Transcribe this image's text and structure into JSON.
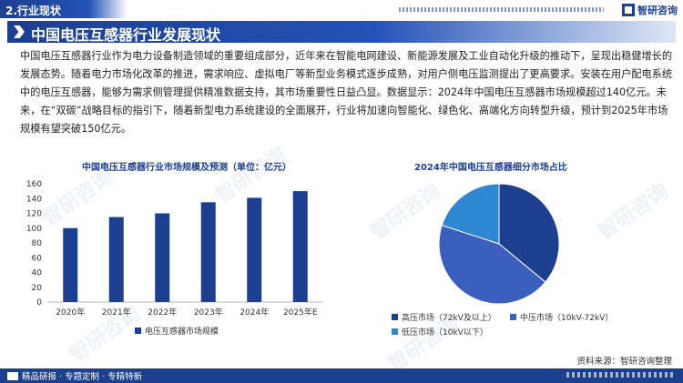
{
  "header": {
    "section": "2.行业现状",
    "brand": "智研咨询"
  },
  "title": "中国电压互感器行业发展现状",
  "body": "中国电压互感器行业作为电力设备制造领域的重要组成部分，近年来在智能电网建设、新能源发展及工业自动化升级的推动下，呈现出稳健增长的发展态势。随着电力市场化改革的推进，需求响应、虚拟电厂等新型业务模式逐步成熟，对用户侧电压监测提出了更高要求。安装在用户配电系统中的电压互感器，能够为需求侧管理提供精准数据支持，其市场重要性日益凸显。数据显示：2024年中国电压互感器市场规模超过140亿元。未来，在“双碳”战略目标的指引下，随着新型电力系统建设的全面展开，行业将加速向智能化、绿色化、高端化方向转型升级，预计到2025年市场规模有望突破150亿元。",
  "watermark": "智研咨询",
  "chart_data": [
    {
      "type": "bar",
      "title": "中国电压互感器行业市场规模及预测（单位：亿元）",
      "categories": [
        "2020年",
        "2021年",
        "2022年",
        "2023年",
        "2024年",
        "2025年E"
      ],
      "series": [
        {
          "name": "电压互感器市场规模",
          "values": [
            100,
            115,
            120,
            135,
            141,
            150
          ]
        }
      ],
      "ylim": [
        0,
        160
      ],
      "yticks": [
        0,
        20,
        40,
        60,
        80,
        100,
        120,
        140,
        160
      ],
      "color": "#1d3f8f",
      "grid": false,
      "legend": "bottom"
    },
    {
      "type": "pie",
      "title": "2024年中国电压互感器细分市场占比",
      "labels": [
        "高压市场（72kV及以上）",
        "中压市场（10kV-72kV）",
        "低压市场（10kV以下）"
      ],
      "values": [
        36,
        44,
        20
      ],
      "colors": [
        "#1d3f8f",
        "#3a5fbf",
        "#2f86d1"
      ],
      "legend": "bottom"
    }
  ],
  "source": "资料来源：智研咨询整理",
  "footer": {
    "text": "精品研报 · 专题定制 · 专精特新"
  }
}
